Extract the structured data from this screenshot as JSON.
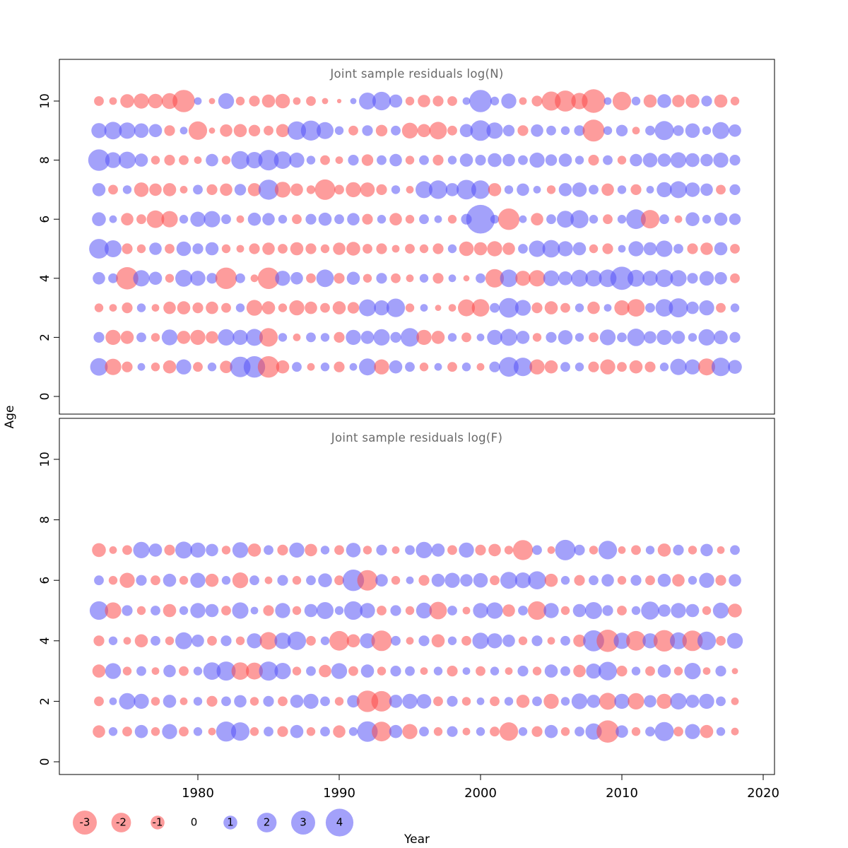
{
  "figure": {
    "bg": "#ffffff",
    "axis": {
      "x_label": "Year",
      "y_label": "Age",
      "x_ticks": [
        1980,
        1990,
        2000,
        2010,
        2020
      ],
      "y_ticks": [
        0,
        2,
        4,
        6,
        8,
        10
      ]
    },
    "colors": {
      "negative": "#fb4b4b",
      "positive": "#5753f6",
      "opacity": 0.55,
      "title": "#696969",
      "axis": "#000000"
    },
    "legend": {
      "values": [
        -3,
        -2,
        -1,
        0,
        1,
        2,
        3,
        4
      ]
    }
  },
  "chart_data": [
    {
      "type": "scatter",
      "subtype": "bubble-residuals",
      "title": "Joint sample residuals log(N)",
      "xlabel": "Year",
      "ylabel": "Age",
      "xlim": [
        1971.5,
        2021.5
      ],
      "ylim": [
        -0.5,
        11.2
      ],
      "years": [
        1973,
        1974,
        1975,
        1976,
        1977,
        1978,
        1979,
        1980,
        1981,
        1982,
        1983,
        1984,
        1985,
        1986,
        1987,
        1988,
        1989,
        1990,
        1991,
        1992,
        1993,
        1994,
        1995,
        1996,
        1997,
        1998,
        1999,
        2000,
        2001,
        2002,
        2003,
        2004,
        2005,
        2006,
        2007,
        2008,
        2009,
        2010,
        2011,
        2012,
        2013,
        2014,
        2015,
        2016,
        2017,
        2018
      ],
      "rows": [
        {
          "age": 1,
          "values": [
            1.6,
            -1.4,
            -0.6,
            0.3,
            -0.4,
            -0.9,
            1.2,
            -0.5,
            0.4,
            -0.8,
            2.2,
            2.4,
            -2.4,
            -0.9,
            0.5,
            -0.3,
            0.4,
            -0.6,
            0.3,
            1.5,
            -1.2,
            0.9,
            0.5,
            -0.4,
            0.3,
            -0.5,
            0.4,
            -0.3,
            0.6,
            2.0,
            1.8,
            -1.2,
            -0.9,
            0.5,
            0.4,
            -0.6,
            -1.2,
            -0.5,
            -0.9,
            -0.6,
            0.4,
            1.4,
            1.2,
            -1.5,
            1.8,
            1.0
          ]
        },
        {
          "age": 2,
          "values": [
            0.6,
            -1.2,
            -0.9,
            0.5,
            -0.4,
            1.3,
            -0.9,
            -1.2,
            -0.8,
            1.4,
            1.2,
            1.5,
            -1.8,
            0.4,
            -0.3,
            0.5,
            0.4,
            -0.6,
            1.2,
            0.9,
            1.4,
            0.6,
            1.8,
            -1.2,
            -0.9,
            0.4,
            -0.5,
            0.3,
            1.2,
            1.5,
            0.9,
            -0.4,
            0.6,
            1.1,
            0.4,
            -0.5,
            1.3,
            0.5,
            1.6,
            0.8,
            1.2,
            0.9,
            0.4,
            1.4,
            1.0,
            0.6
          ]
        },
        {
          "age": 3,
          "values": [
            -0.4,
            -0.3,
            -0.6,
            0.4,
            -0.3,
            -0.8,
            -0.9,
            -0.6,
            -0.8,
            -0.5,
            0.4,
            -1.3,
            -0.9,
            -0.4,
            -1.2,
            -0.8,
            -0.5,
            -0.9,
            -0.7,
            1.5,
            1.2,
            1.8,
            -0.4,
            0.3,
            -0.2,
            -0.3,
            -1.5,
            -1.6,
            0.5,
            2.0,
            1.3,
            -0.6,
            -0.9,
            -0.5,
            0.4,
            -0.8,
            0.3,
            -1.2,
            -1.6,
            0.5,
            1.6,
            1.9,
            0.8,
            1.2,
            -0.5,
            0.4
          ]
        },
        {
          "age": 4,
          "values": [
            0.8,
            0.5,
            -2.6,
            1.4,
            0.9,
            -0.4,
            1.5,
            1.2,
            0.6,
            -2.4,
            0.5,
            -0.3,
            -2.4,
            1.2,
            0.8,
            -0.5,
            1.6,
            -0.6,
            0.9,
            -0.4,
            0.6,
            -0.5,
            -0.3,
            0.4,
            -0.6,
            0.3,
            -0.2,
            0.5,
            -1.8,
            1.6,
            -1.2,
            -1.4,
            1.3,
            1.0,
            1.5,
            1.4,
            1.6,
            2.8,
            1.5,
            1.2,
            1.6,
            1.4,
            0.6,
            1.1,
            0.8,
            -0.5
          ]
        },
        {
          "age": 5,
          "values": [
            2.0,
            1.5,
            -0.6,
            -0.4,
            0.8,
            -0.5,
            1.1,
            0.6,
            0.9,
            -0.4,
            -0.3,
            -0.6,
            -0.8,
            -0.5,
            -0.9,
            -0.6,
            -0.4,
            -0.8,
            -1.0,
            -0.5,
            -0.6,
            -0.3,
            -0.5,
            -0.4,
            -0.6,
            0.4,
            -1.1,
            -0.9,
            -1.2,
            -0.8,
            0.5,
            1.4,
            1.6,
            1.2,
            0.9,
            -0.4,
            -0.6,
            0.3,
            1.2,
            0.9,
            1.4,
            0.5,
            -0.6,
            -0.8,
            0.9,
            -0.5
          ]
        },
        {
          "age": 6,
          "values": [
            1.0,
            0.3,
            -0.8,
            -0.5,
            -1.6,
            -1.4,
            0.4,
            1.2,
            1.4,
            0.5,
            -0.3,
            0.9,
            0.8,
            0.4,
            -0.5,
            0.6,
            0.9,
            0.5,
            0.8,
            -0.6,
            0.4,
            -0.8,
            -0.4,
            0.5,
            0.3,
            -0.4,
            0.6,
            4.3,
            0.4,
            -2.4,
            0.3,
            -0.8,
            0.5,
            1.5,
            1.7,
            0.4,
            -0.5,
            0.4,
            2.0,
            -1.8,
            0.5,
            -0.3,
            1.0,
            0.4,
            0.9,
            0.7
          ]
        },
        {
          "age": 7,
          "values": [
            0.9,
            -0.5,
            0.4,
            -1.1,
            -0.8,
            -0.9,
            -0.3,
            0.5,
            -0.6,
            -0.8,
            0.7,
            -0.9,
            2.1,
            -1.3,
            -0.8,
            -0.4,
            -2.2,
            -0.5,
            -1.2,
            -1.1,
            -0.6,
            0.4,
            -0.3,
            1.5,
            1.8,
            0.9,
            2.0,
            1.8,
            -0.9,
            0.4,
            0.8,
            0.3,
            -0.4,
            0.9,
            1.1,
            0.5,
            -0.8,
            0.4,
            -0.6,
            0.3,
            1.2,
            1.5,
            1.1,
            0.8,
            -0.5,
            0.6
          ]
        },
        {
          "age": 8,
          "values": [
            2.4,
            1.3,
            1.5,
            0.9,
            -0.4,
            -0.6,
            -0.5,
            -0.3,
            0.8,
            -0.4,
            1.7,
            1.4,
            2.2,
            1.6,
            1.2,
            0.4,
            -0.5,
            -0.3,
            0.6,
            -0.7,
            0.5,
            0.8,
            -0.4,
            0.5,
            -0.6,
            0.4,
            0.9,
            0.6,
            1.0,
            0.8,
            0.5,
            1.2,
            0.7,
            0.9,
            0.4,
            -0.6,
            0.5,
            -0.4,
            0.8,
            1.1,
            0.9,
            1.3,
            1.0,
            0.8,
            1.2,
            0.6
          ]
        },
        {
          "age": 9,
          "values": [
            1.2,
            1.6,
            1.4,
            1.1,
            0.9,
            -0.6,
            0.3,
            -1.8,
            -0.2,
            -0.8,
            -0.9,
            -0.7,
            -0.5,
            -0.9,
            1.8,
            2.1,
            1.5,
            0.4,
            -0.5,
            0.6,
            -0.7,
            0.5,
            -1.3,
            -0.9,
            -1.6,
            -0.5,
            0.9,
            2.2,
            1.4,
            0.7,
            -0.6,
            0.8,
            0.5,
            0.4,
            0.6,
            -2.5,
            0.4,
            0.7,
            -0.3,
            0.5,
            1.9,
            0.6,
            1.1,
            0.4,
            1.5,
            0.8
          ]
        },
        {
          "age": 10,
          "values": [
            -0.5,
            -0.3,
            -1.0,
            -1.2,
            -1.1,
            -1.3,
            -2.6,
            0.3,
            -0.2,
            1.3,
            -0.4,
            -0.6,
            -0.9,
            -1.1,
            -0.3,
            -0.5,
            -0.2,
            -0.1,
            0.2,
            1.5,
            1.8,
            0.9,
            -0.4,
            -0.8,
            -0.6,
            -0.5,
            0.3,
            2.6,
            0.4,
            1.2,
            -0.3,
            -0.6,
            -1.9,
            -2.3,
            -1.4,
            -2.9,
            0.3,
            -1.8,
            0.4,
            -0.9,
            1.0,
            -0.8,
            -1.0,
            0.6,
            -0.9,
            -0.4
          ]
        }
      ]
    },
    {
      "type": "scatter",
      "subtype": "bubble-residuals",
      "title": "Joint sample residuals log(F)",
      "xlabel": "Year",
      "ylabel": "Age",
      "xlim": [
        1971.5,
        2021.5
      ],
      "ylim": [
        -0.5,
        11.2
      ],
      "years": [
        1973,
        1974,
        1975,
        1976,
        1977,
        1978,
        1979,
        1980,
        1981,
        1982,
        1983,
        1984,
        1985,
        1986,
        1987,
        1988,
        1989,
        1990,
        1991,
        1992,
        1993,
        1994,
        1995,
        1996,
        1997,
        1998,
        1999,
        2000,
        2001,
        2002,
        2003,
        2004,
        2005,
        2006,
        2007,
        2008,
        2009,
        2010,
        2011,
        2012,
        2013,
        2014,
        2015,
        2016,
        2017,
        2018
      ],
      "rows": [
        {
          "age": 1,
          "values": [
            -0.8,
            0.4,
            -0.5,
            0.9,
            -0.4,
            1.2,
            -0.5,
            0.4,
            -0.3,
            2.1,
            1.8,
            -0.4,
            0.5,
            -0.6,
            0.9,
            -0.4,
            0.5,
            -0.8,
            0.4,
            2.2,
            -2.0,
            0.9,
            -1.2,
            0.5,
            -0.4,
            0.6,
            -0.3,
            0.4,
            -0.5,
            -1.8,
            0.4,
            -0.6,
            0.9,
            -0.4,
            0.5,
            1.4,
            -2.6,
            0.8,
            -0.4,
            0.5,
            1.9,
            -0.5,
            1.2,
            -0.9,
            0.4,
            -0.3
          ]
        },
        {
          "age": 2,
          "values": [
            -0.5,
            0.3,
            1.4,
            1.2,
            -0.4,
            0.9,
            -0.3,
            0.4,
            -0.6,
            0.5,
            0.8,
            -0.4,
            0.6,
            -0.5,
            0.9,
            1.2,
            0.5,
            -0.4,
            0.8,
            -2.4,
            -2.2,
            0.9,
            1.2,
            1.1,
            -0.5,
            0.6,
            -0.4,
            0.3,
            -0.5,
            0.4,
            -0.9,
            0.5,
            -1.2,
            0.4,
            1.3,
            0.9,
            -1.5,
            1.2,
            -1.4,
            0.8,
            -1.2,
            1.4,
            0.9,
            1.2,
            0.5,
            -0.3
          ]
        },
        {
          "age": 3,
          "values": [
            -0.9,
            1.3,
            -0.4,
            0.5,
            -0.3,
            0.8,
            -0.5,
            0.4,
            1.6,
            1.9,
            -1.6,
            -1.5,
            1.9,
            1.4,
            -0.4,
            0.5,
            -0.8,
            1.3,
            -0.5,
            0.9,
            -0.4,
            0.6,
            0.5,
            -0.3,
            0.4,
            -0.6,
            0.3,
            -0.5,
            0.4,
            -0.3,
            0.6,
            -0.4,
            0.9,
            0.5,
            -0.8,
            1.2,
            1.8,
            -0.6,
            0.4,
            -0.5,
            0.9,
            -0.4,
            1.4,
            -0.3,
            0.6,
            -0.2
          ]
        },
        {
          "age": 4,
          "values": [
            -0.6,
            0.4,
            -0.3,
            -0.9,
            0.5,
            -0.4,
            1.5,
            0.8,
            -0.5,
            0.6,
            -0.4,
            1.2,
            -1.6,
            1.4,
            1.8,
            -0.5,
            0.4,
            -2.0,
            -0.9,
            1.2,
            -2.2,
            0.5,
            -0.3,
            0.6,
            -0.9,
            0.4,
            -0.5,
            1.4,
            1.2,
            0.8,
            -0.4,
            0.6,
            -0.3,
            0.5,
            -0.8,
            2.3,
            -2.6,
            1.4,
            -2.0,
            1.2,
            -2.4,
            1.5,
            -2.2,
            1.8,
            -0.5,
            1.3
          ]
        },
        {
          "age": 5,
          "values": [
            1.8,
            -1.4,
            0.6,
            -0.4,
            0.5,
            -0.9,
            0.4,
            1.2,
            0.9,
            -0.5,
            1.4,
            0.3,
            -0.6,
            1.2,
            -0.4,
            0.9,
            1.5,
            0.4,
            1.8,
            1.2,
            -0.5,
            0.6,
            -0.4,
            1.3,
            -1.6,
            0.5,
            -0.3,
            1.2,
            1.4,
            -0.8,
            0.5,
            -1.8,
            1.2,
            -0.4,
            0.9,
            1.5,
            0.6,
            -0.5,
            0.4,
            1.7,
            0.8,
            1.2,
            0.9,
            -0.4,
            1.3,
            -1.0
          ]
        },
        {
          "age": 6,
          "values": [
            0.5,
            -0.4,
            -1.2,
            0.6,
            -0.5,
            0.9,
            -0.4,
            1.2,
            -0.9,
            0.4,
            -1.3,
            0.5,
            -0.3,
            0.6,
            -0.4,
            0.5,
            1.0,
            -0.5,
            2.4,
            -2.2,
            0.8,
            -0.4,
            0.3,
            -0.6,
            0.9,
            1.2,
            0.8,
            1.1,
            -0.5,
            1.5,
            1.3,
            1.7,
            -0.9,
            0.4,
            -0.6,
            0.5,
            0.8,
            -0.4,
            0.6,
            -0.5,
            0.9,
            -0.8,
            0.4,
            1.2,
            -0.6,
            0.8
          ]
        },
        {
          "age": 7,
          "values": [
            -1.0,
            -0.3,
            -0.5,
            1.4,
            0.9,
            -0.6,
            1.5,
            1.2,
            0.8,
            -0.4,
            1.3,
            -0.9,
            0.5,
            -0.6,
            1.2,
            -0.8,
            0.4,
            -0.5,
            1.1,
            -0.4,
            0.6,
            -0.3,
            0.5,
            1.4,
            0.9,
            -0.5,
            1.2,
            -0.6,
            -0.8,
            -0.4,
            -2.1,
            0.5,
            -0.3,
            2.2,
            0.6,
            -0.4,
            1.8,
            -0.3,
            -0.5,
            0.4,
            -0.9,
            0.6,
            -0.4,
            0.8,
            -0.3,
            0.5
          ]
        }
      ]
    }
  ]
}
